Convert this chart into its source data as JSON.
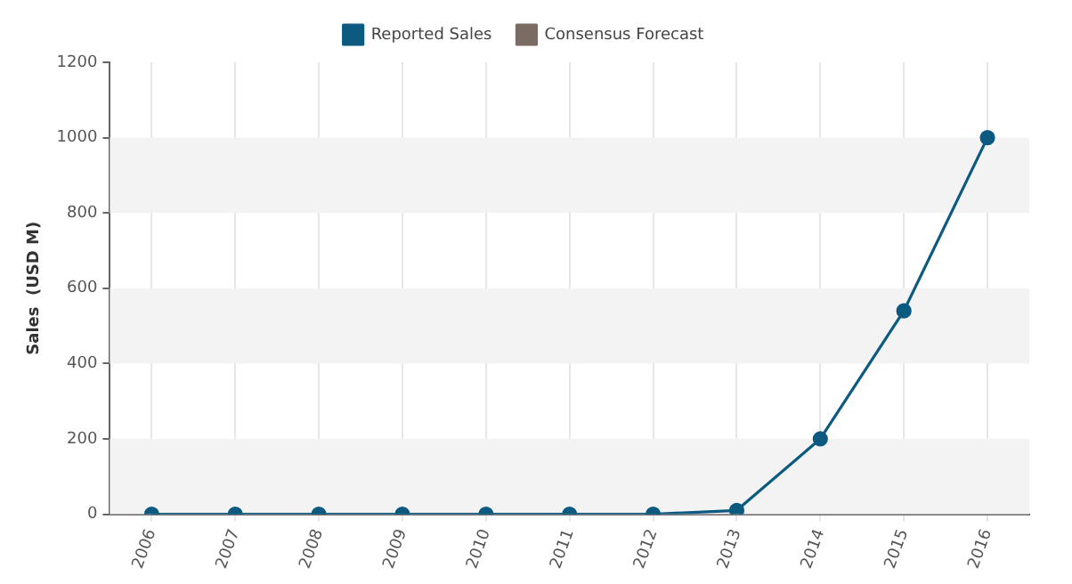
{
  "chart_data": {
    "type": "line",
    "ylabel": "Sales  (USD M)",
    "categories": [
      "2006",
      "2007",
      "2008",
      "2009",
      "2010",
      "2011",
      "2012",
      "2013",
      "2014",
      "2015",
      "2016"
    ],
    "series": [
      {
        "name": "Reported Sales",
        "color": "#0c5a80",
        "values": [
          0,
          0,
          0,
          0,
          0,
          0,
          0,
          10,
          200,
          540,
          1000
        ]
      },
      {
        "name": "Consensus Forecast",
        "color": "#7a6c63",
        "values": [
          null,
          null,
          null,
          null,
          null,
          null,
          null,
          null,
          null,
          null,
          null
        ]
      }
    ],
    "ylim": [
      0,
      1200
    ],
    "yticks": [
      0,
      200,
      400,
      600,
      800,
      1000,
      1200
    ],
    "grid": "x",
    "legend": "top",
    "marker": "circle",
    "bands": [
      {
        "axis": "y",
        "from": 0,
        "to": 200,
        "color": "#f3f3f3"
      },
      {
        "axis": "y",
        "from": 400,
        "to": 600,
        "color": "#f3f3f3"
      },
      {
        "axis": "y",
        "from": 800,
        "to": 1000,
        "color": "#f3f3f3"
      }
    ]
  }
}
